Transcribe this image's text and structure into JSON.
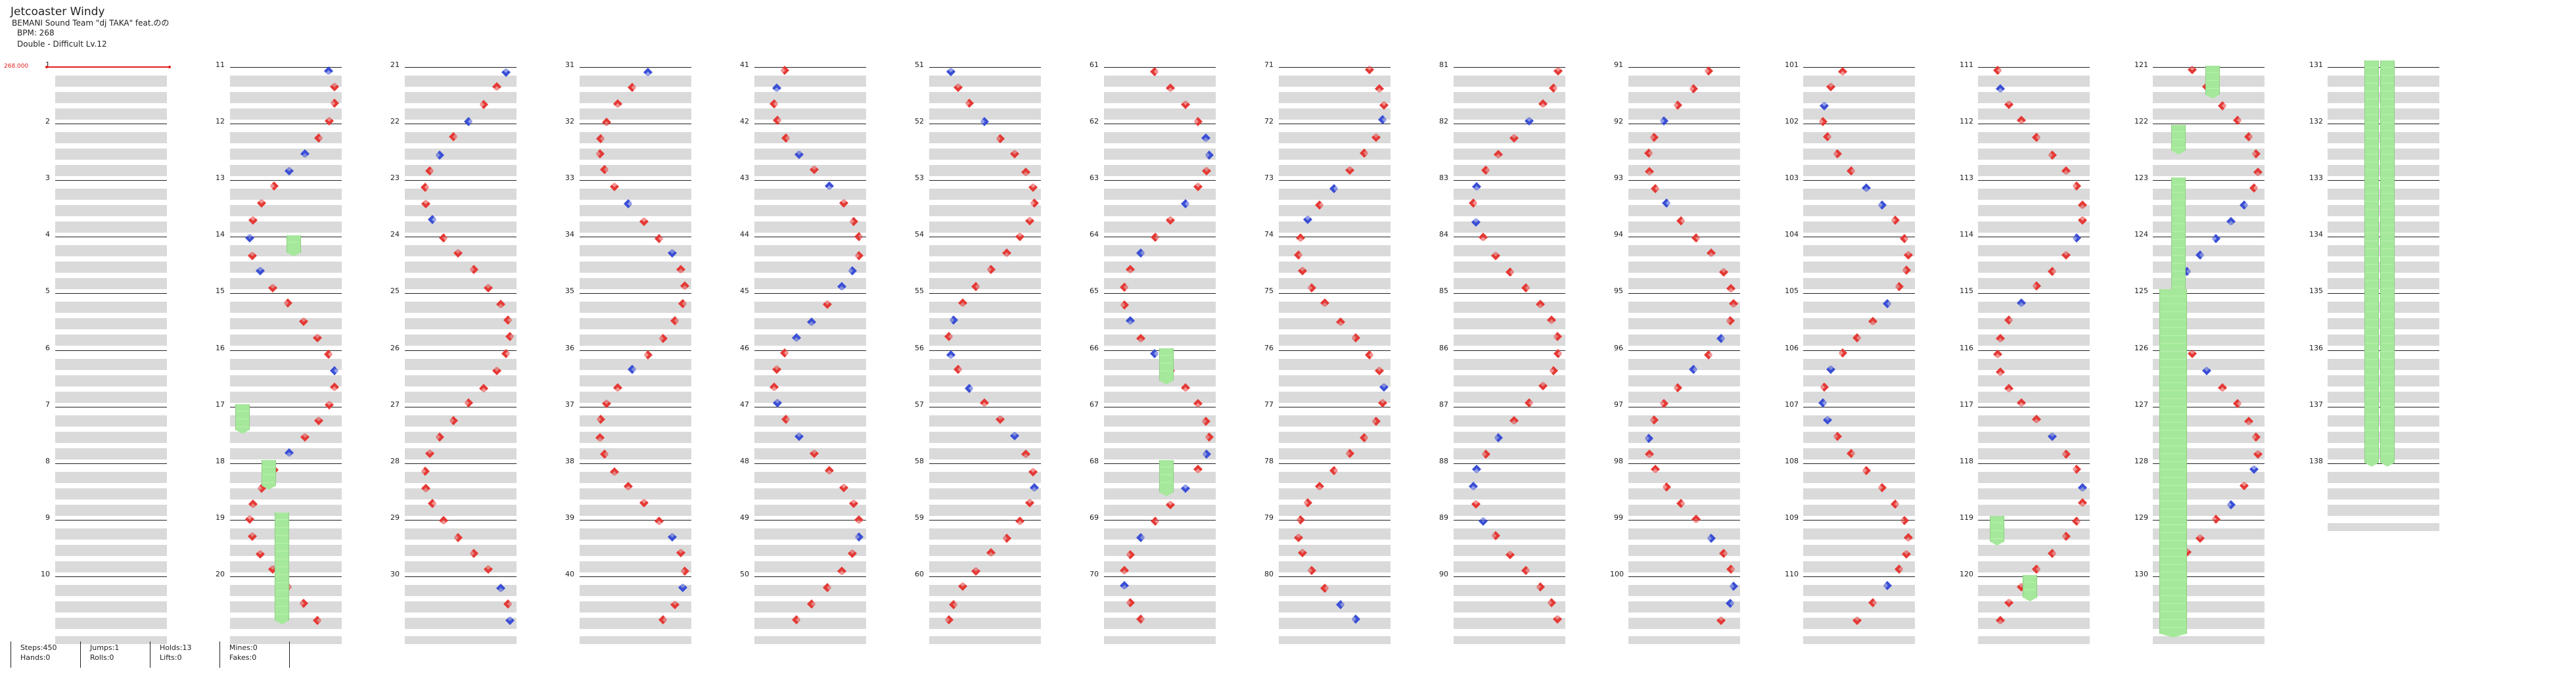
{
  "song": {
    "title": "Jetcoaster Windy",
    "artist": "BEMANI Sound Team \"dj TAKA\" feat.のの",
    "bpm_label": "BPM: 268",
    "difficulty_label": "Double - Difficult  Lv.12"
  },
  "bpm_marker": "268.000",
  "colors": {
    "tap_red": "#e53935",
    "tap_blue": "#3a4fd6",
    "hold": "#a6e89b",
    "beat_band": "#dadada"
  },
  "chart": {
    "measures_per_column": 10,
    "total_measures": 138,
    "column_numbers": [
      [
        1,
        2,
        3,
        4,
        5,
        6,
        7,
        8,
        9,
        10
      ],
      [
        11,
        12,
        13,
        14,
        15,
        16,
        17,
        18,
        19,
        20
      ],
      [
        21,
        22,
        23,
        24,
        25,
        26,
        27,
        28,
        29,
        30
      ],
      [
        31,
        32,
        33,
        34,
        35,
        36,
        37,
        38,
        39,
        40
      ],
      [
        41,
        42,
        43,
        44,
        45,
        46,
        47,
        48,
        49,
        50
      ],
      [
        51,
        52,
        53,
        54,
        55,
        56,
        57,
        58,
        59,
        60
      ],
      [
        61,
        62,
        63,
        64,
        65,
        66,
        67,
        68,
        69,
        70
      ],
      [
        71,
        72,
        73,
        74,
        75,
        76,
        77,
        78,
        79,
        80
      ],
      [
        81,
        82,
        83,
        84,
        85,
        86,
        87,
        88,
        89,
        90
      ],
      [
        91,
        92,
        93,
        94,
        95,
        96,
        97,
        98,
        99,
        100
      ],
      [
        101,
        102,
        103,
        104,
        105,
        106,
        107,
        108,
        109,
        110
      ],
      [
        111,
        112,
        113,
        114,
        115,
        116,
        117,
        118,
        119,
        120
      ],
      [
        121,
        122,
        123,
        124,
        125,
        126,
        127,
        128,
        129,
        130
      ],
      [
        131,
        132,
        133,
        134,
        135,
        136,
        137,
        138
      ]
    ]
  },
  "stats": [
    {
      "line1": "Steps:450",
      "line2": "Hands:0"
    },
    {
      "line1": "Jumps:1",
      "line2": "Rolls:0"
    },
    {
      "line1": "Holds:13",
      "line2": "Lifts:0"
    },
    {
      "line1": "Mines:0",
      "line2": "Fakes:0"
    }
  ]
}
